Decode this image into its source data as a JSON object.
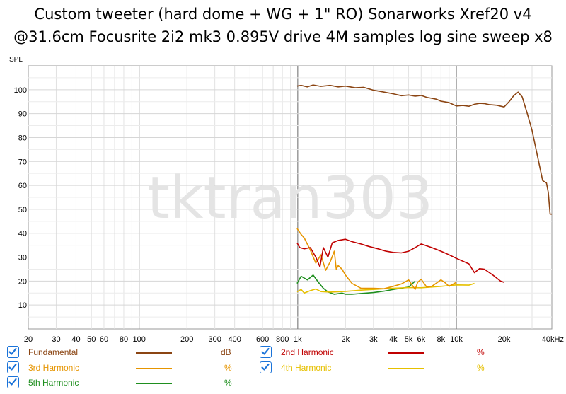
{
  "title_line1": "Custom tweeter (hard dome + WG + 1\" RO) Sonarworks Xref20 v4",
  "title_line2": "@31.6cm Focusrite 2i2 mk3 0.895V drive 4M samples log sine sweep x8",
  "watermark": "tktran303",
  "legend": [
    {
      "label": "Fundamental",
      "unit": "dB",
      "color": "#8b4513",
      "checked": true
    },
    {
      "label": "2nd Harmonic",
      "unit": "%",
      "color": "#c00000",
      "checked": true
    },
    {
      "label": "3rd Harmonic",
      "unit": "%",
      "color": "#e69500",
      "checked": true
    },
    {
      "label": "4th Harmonic",
      "unit": "%",
      "color": "#e6c000",
      "checked": true
    },
    {
      "label": "5th Harmonic",
      "unit": "%",
      "color": "#1f8f1f",
      "checked": true
    }
  ],
  "chart_data": {
    "type": "line",
    "ylabel": "SPL",
    "xlabel": "",
    "x_scale": "log",
    "xlim": [
      20,
      40000
    ],
    "ylim": [
      0,
      110
    ],
    "x_ticks": [
      20,
      30,
      40,
      50,
      60,
      80,
      100,
      200,
      300,
      400,
      600,
      800,
      1000,
      2000,
      3000,
      4000,
      5000,
      6000,
      8000,
      10000,
      20000,
      40000
    ],
    "x_tick_labels": [
      "20",
      "30",
      "40",
      "50",
      "60",
      "80",
      "100",
      "200",
      "300",
      "400",
      "600",
      "800",
      "1k",
      "2k",
      "3k",
      "4k",
      "5k",
      "6k",
      "8k",
      "10k",
      "20k",
      "40kHz"
    ],
    "y_ticks": [
      10,
      20,
      30,
      40,
      50,
      60,
      70,
      80,
      90,
      100
    ],
    "y_tick_labels": [
      "10",
      "20",
      "30",
      "40",
      "50",
      "60",
      "70",
      "80",
      "90",
      "100"
    ],
    "grid": true,
    "series": [
      {
        "name": "Fundamental",
        "color": "#8b4513",
        "x": [
          990,
          1050,
          1150,
          1250,
          1400,
          1600,
          1800,
          2000,
          2300,
          2600,
          3000,
          3500,
          4000,
          4500,
          5000,
          5500,
          6000,
          6500,
          7000,
          7500,
          8000,
          9000,
          10000,
          11000,
          12000,
          13000,
          14000,
          15000,
          16000,
          18000,
          20000,
          21500,
          23000,
          24500,
          26000,
          28000,
          30000,
          33000,
          35000,
          37000,
          38000,
          39000,
          40000
        ],
        "y": [
          101.5,
          101.8,
          101.2,
          102,
          101.4,
          101.8,
          101.2,
          101.5,
          100.8,
          101,
          99.8,
          99,
          98.3,
          97.5,
          97.8,
          97.3,
          97.6,
          96.8,
          96.4,
          96,
          95.2,
          94.6,
          93.2,
          93.4,
          93.1,
          93.9,
          94.3,
          94.2,
          93.8,
          93.5,
          92.8,
          95,
          97.5,
          99,
          97,
          90,
          83,
          70,
          62,
          61,
          57,
          48,
          48
        ]
      },
      {
        "name": "2nd Harmonic",
        "color": "#c00000",
        "x": [
          990,
          1030,
          1100,
          1200,
          1300,
          1380,
          1450,
          1550,
          1650,
          1800,
          2000,
          2200,
          2500,
          2800,
          3200,
          3600,
          4000,
          4500,
          5000,
          5500,
          6000,
          7000,
          8000,
          9000,
          10000,
          12000,
          13000,
          14000,
          15000,
          17000,
          19000,
          20000
        ],
        "y": [
          36,
          34,
          33.5,
          34,
          30,
          26,
          34,
          30,
          36,
          37,
          37.5,
          36.5,
          35.5,
          34.5,
          33.5,
          32.5,
          32,
          31.8,
          32.5,
          34,
          35.5,
          34,
          32.5,
          31,
          29.5,
          27.2,
          23.5,
          25.2,
          25,
          22.5,
          20,
          19.5
        ]
      },
      {
        "name": "3rd Harmonic",
        "color": "#e69500",
        "x": [
          990,
          1050,
          1100,
          1200,
          1300,
          1400,
          1500,
          1600,
          1700,
          1750,
          1800,
          1900,
          2000,
          2200,
          2500,
          3000,
          3500,
          4000,
          4500,
          5000,
          5500,
          5700,
          6000,
          6500,
          7000,
          8000,
          8500,
          9000,
          10000
        ],
        "y": [
          42,
          39.5,
          38,
          33,
          27.5,
          31,
          24.5,
          28,
          32.5,
          25,
          26.5,
          25,
          22.5,
          19,
          17,
          17,
          16.8,
          17.8,
          18.8,
          20.5,
          16.5,
          19.5,
          20.8,
          17.5,
          17.8,
          20.5,
          19.3,
          17.8,
          19.5
        ]
      },
      {
        "name": "4th Harmonic",
        "color": "#e6c000",
        "x": [
          990,
          1050,
          1100,
          1200,
          1300,
          1400,
          1600,
          2000,
          2500,
          3000,
          4000,
          5000,
          6000,
          8000,
          10000,
          12000,
          13000
        ],
        "y": [
          15.5,
          16.5,
          15,
          16,
          16.7,
          15.6,
          15.4,
          15.7,
          16.2,
          16.5,
          17,
          17.3,
          17.2,
          17.8,
          18.4,
          18.3,
          19
        ]
      },
      {
        "name": "5th Harmonic",
        "color": "#1f8f1f",
        "x": [
          990,
          1050,
          1150,
          1250,
          1350,
          1450,
          1550,
          1700,
          1900,
          2000,
          2200,
          2500,
          3000,
          3500,
          4000,
          4500,
          5000,
          5300,
          5500
        ],
        "y": [
          19,
          22,
          20.5,
          22.5,
          19.5,
          17,
          15.5,
          14.5,
          15,
          14.5,
          14.5,
          14.8,
          15.2,
          15.8,
          16.5,
          17,
          17.5,
          19,
          20
        ]
      }
    ]
  }
}
